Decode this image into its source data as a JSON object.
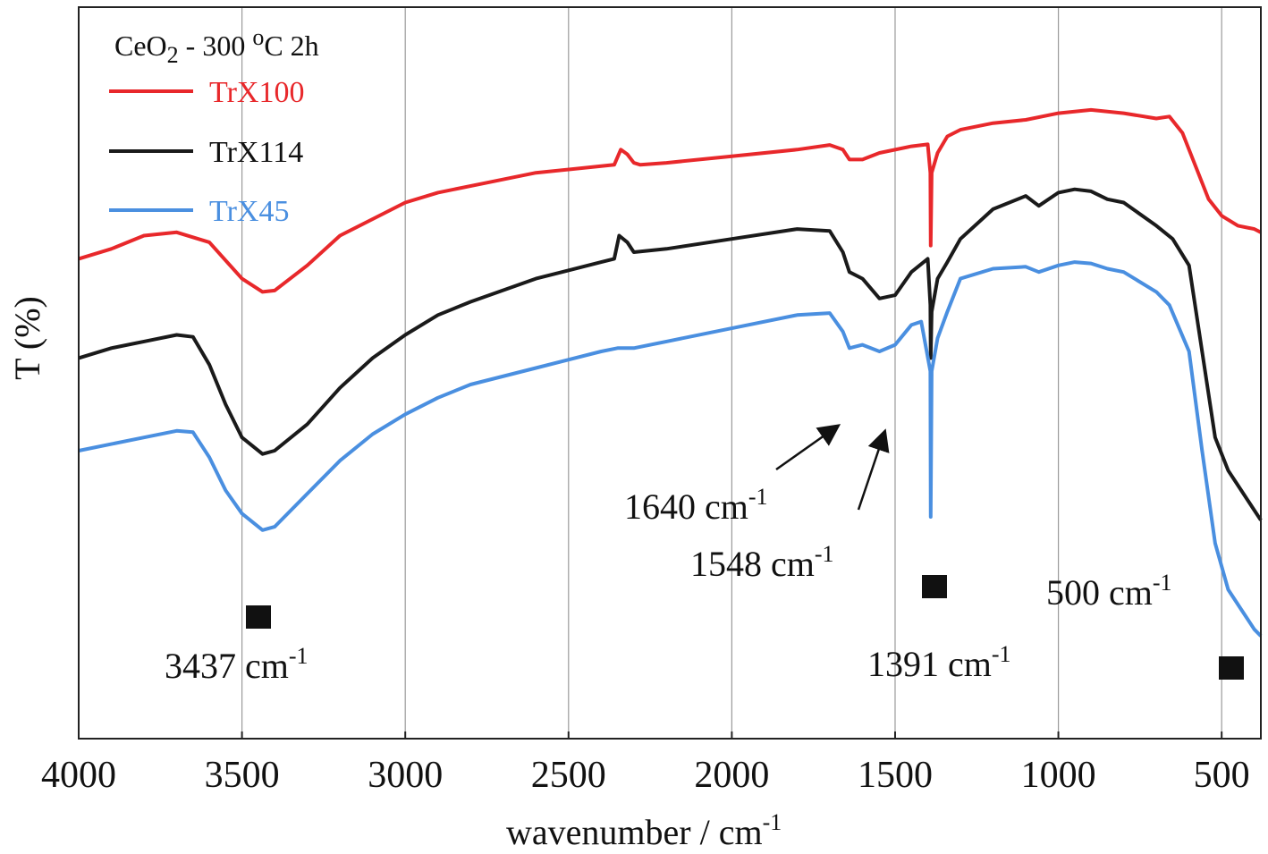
{
  "chart_data": {
    "type": "line",
    "title_parts": {
      "compound": "CeO",
      "subscript": "2",
      "condition": " - 300 ",
      "degree": "o",
      "rest": "C 2h"
    },
    "xlabel": "wavenumber / cm",
    "xlabel_exponent": "-1",
    "ylabel": "T (%)",
    "x_reversed": true,
    "xlim": [
      4000,
      380
    ],
    "x_ticks": [
      4000,
      3500,
      3000,
      2500,
      2000,
      1500,
      1000,
      500
    ],
    "x_tick_labels": [
      "4000",
      "3500",
      "3000",
      "2500",
      "2000",
      "1500",
      "1000",
      "500"
    ],
    "vertical_grid": true,
    "y_tick_labels": false,
    "ylim": [
      0,
      100
    ],
    "legend_position": "top-left",
    "series": [
      {
        "name": "TrX100",
        "color": "#e8282b",
        "points": [
          [
            4000,
            69
          ],
          [
            3900,
            70.5
          ],
          [
            3800,
            72.5
          ],
          [
            3700,
            73
          ],
          [
            3600,
            71.5
          ],
          [
            3500,
            66
          ],
          [
            3437,
            64
          ],
          [
            3400,
            64.2
          ],
          [
            3300,
            68
          ],
          [
            3200,
            72.5
          ],
          [
            3100,
            75
          ],
          [
            3000,
            77.5
          ],
          [
            2900,
            79
          ],
          [
            2750,
            80.5
          ],
          [
            2600,
            82
          ],
          [
            2400,
            83
          ],
          [
            2360,
            83.2
          ],
          [
            2340,
            85.5
          ],
          [
            2320,
            84.8
          ],
          [
            2300,
            83.5
          ],
          [
            2280,
            83.2
          ],
          [
            2200,
            83.5
          ],
          [
            2000,
            84.5
          ],
          [
            1800,
            85.5
          ],
          [
            1700,
            86.2
          ],
          [
            1660,
            85.5
          ],
          [
            1640,
            84
          ],
          [
            1600,
            84
          ],
          [
            1548,
            85
          ],
          [
            1450,
            86
          ],
          [
            1400,
            86.3
          ],
          [
            1392,
            82
          ],
          [
            1391,
            71
          ],
          [
            1388,
            82
          ],
          [
            1370,
            85
          ],
          [
            1340,
            87.5
          ],
          [
            1300,
            88.5
          ],
          [
            1200,
            89.5
          ],
          [
            1100,
            90
          ],
          [
            1000,
            91
          ],
          [
            900,
            91.5
          ],
          [
            800,
            91
          ],
          [
            700,
            90.2
          ],
          [
            660,
            90.5
          ],
          [
            620,
            88
          ],
          [
            580,
            83
          ],
          [
            540,
            78
          ],
          [
            500,
            75.5
          ],
          [
            450,
            74
          ],
          [
            400,
            73.5
          ],
          [
            380,
            73
          ]
        ]
      },
      {
        "name": "TrX114",
        "color": "#1a1a1a",
        "points": [
          [
            4000,
            54
          ],
          [
            3900,
            55.5
          ],
          [
            3800,
            56.5
          ],
          [
            3700,
            57.5
          ],
          [
            3650,
            57.2
          ],
          [
            3600,
            53
          ],
          [
            3550,
            47
          ],
          [
            3500,
            42
          ],
          [
            3437,
            39.5
          ],
          [
            3400,
            40
          ],
          [
            3300,
            44
          ],
          [
            3200,
            49.5
          ],
          [
            3100,
            54
          ],
          [
            3000,
            57.5
          ],
          [
            2900,
            60.5
          ],
          [
            2800,
            62.5
          ],
          [
            2600,
            66
          ],
          [
            2400,
            68.5
          ],
          [
            2360,
            69
          ],
          [
            2345,
            72.5
          ],
          [
            2320,
            71.5
          ],
          [
            2300,
            70
          ],
          [
            2200,
            70.5
          ],
          [
            2000,
            72
          ],
          [
            1800,
            73.5
          ],
          [
            1700,
            73.2
          ],
          [
            1660,
            70
          ],
          [
            1640,
            67
          ],
          [
            1600,
            66
          ],
          [
            1548,
            63
          ],
          [
            1500,
            63.5
          ],
          [
            1450,
            67
          ],
          [
            1400,
            69
          ],
          [
            1392,
            62
          ],
          [
            1391,
            54
          ],
          [
            1388,
            61
          ],
          [
            1370,
            66
          ],
          [
            1340,
            68.5
          ],
          [
            1300,
            72
          ],
          [
            1200,
            76.5
          ],
          [
            1100,
            78.5
          ],
          [
            1060,
            77
          ],
          [
            1000,
            79
          ],
          [
            950,
            79.5
          ],
          [
            900,
            79.2
          ],
          [
            850,
            78
          ],
          [
            800,
            77.5
          ],
          [
            700,
            74
          ],
          [
            650,
            72
          ],
          [
            600,
            68
          ],
          [
            560,
            55
          ],
          [
            520,
            42
          ],
          [
            480,
            37
          ],
          [
            440,
            34
          ],
          [
            400,
            31
          ],
          [
            380,
            29.5
          ]
        ]
      },
      {
        "name": "TrX45",
        "color": "#4a8fe0",
        "points": [
          [
            4000,
            40
          ],
          [
            3900,
            41
          ],
          [
            3800,
            42
          ],
          [
            3700,
            43
          ],
          [
            3650,
            42.8
          ],
          [
            3600,
            39
          ],
          [
            3550,
            34
          ],
          [
            3500,
            30.5
          ],
          [
            3437,
            28
          ],
          [
            3400,
            28.5
          ],
          [
            3300,
            33.5
          ],
          [
            3200,
            38.5
          ],
          [
            3100,
            42.5
          ],
          [
            3000,
            45.5
          ],
          [
            2900,
            48
          ],
          [
            2800,
            50
          ],
          [
            2600,
            52.5
          ],
          [
            2400,
            55
          ],
          [
            2350,
            55.5
          ],
          [
            2300,
            55.5
          ],
          [
            2200,
            56.5
          ],
          [
            2000,
            58.5
          ],
          [
            1800,
            60.5
          ],
          [
            1700,
            60.8
          ],
          [
            1660,
            58
          ],
          [
            1640,
            55.5
          ],
          [
            1600,
            56
          ],
          [
            1548,
            55
          ],
          [
            1500,
            56
          ],
          [
            1450,
            59
          ],
          [
            1420,
            59.5
          ],
          [
            1392,
            52
          ],
          [
            1391,
            30
          ],
          [
            1388,
            52
          ],
          [
            1370,
            57
          ],
          [
            1340,
            61
          ],
          [
            1300,
            66
          ],
          [
            1200,
            67.5
          ],
          [
            1100,
            67.8
          ],
          [
            1060,
            67
          ],
          [
            1000,
            68
          ],
          [
            950,
            68.5
          ],
          [
            900,
            68.3
          ],
          [
            850,
            67.5
          ],
          [
            800,
            67
          ],
          [
            700,
            64
          ],
          [
            660,
            62
          ],
          [
            600,
            55
          ],
          [
            560,
            40
          ],
          [
            520,
            26
          ],
          [
            480,
            19
          ],
          [
            440,
            16
          ],
          [
            400,
            13
          ],
          [
            380,
            12
          ]
        ]
      }
    ],
    "annotations": [
      {
        "id": "3437",
        "value": "3437 cm",
        "exponent": "-1",
        "marker_at": 3437
      },
      {
        "id": "1640",
        "value": "1640 cm",
        "exponent": "-1",
        "arrow_to": 1640
      },
      {
        "id": "1548",
        "value": "1548 cm",
        "exponent": "-1",
        "arrow_to": 1548
      },
      {
        "id": "1391",
        "value": "1391 cm",
        "exponent": "-1",
        "marker_at": 1391
      },
      {
        "id": "500",
        "value": "500 cm",
        "exponent": "-1",
        "marker_at": 470
      }
    ]
  }
}
